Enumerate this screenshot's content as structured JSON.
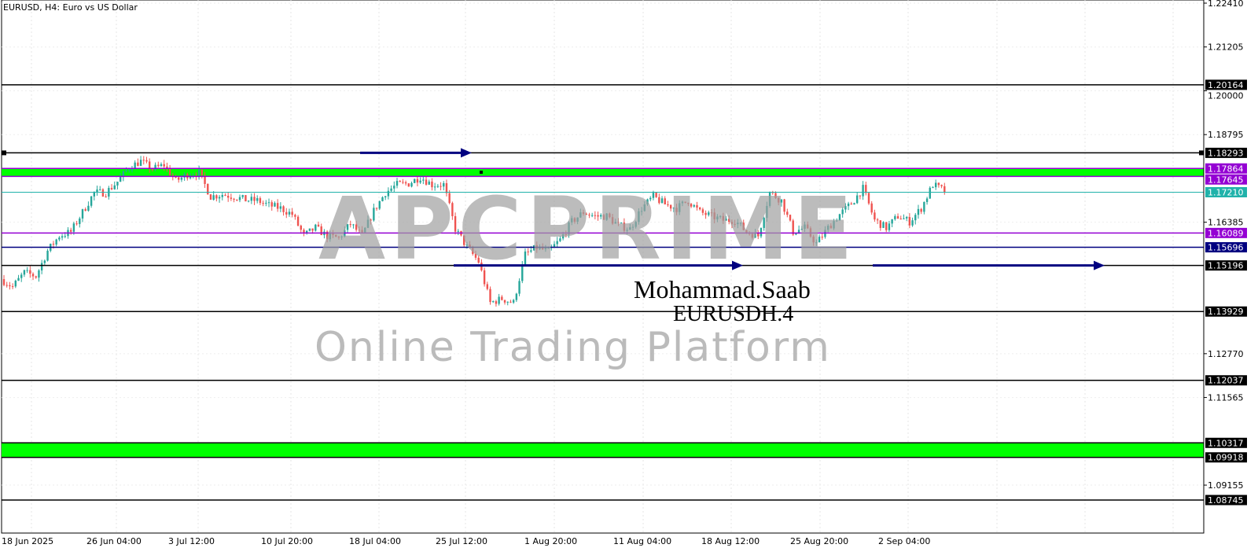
{
  "header": {
    "title": "EURUSD, H4:  Euro vs US Dollar"
  },
  "watermark": {
    "brand": "APCPRIME",
    "tagline": "Online Trading Platform"
  },
  "annotation": {
    "author": "Mohammad.Saab",
    "symbol": "EURUSDH.4"
  },
  "colors": {
    "bull": "#26a69a",
    "bear": "#ef5350",
    "zone": "#00ff00",
    "purple": "#9400d3",
    "navy": "#000080",
    "teal": "#20b2aa"
  },
  "chart_data": {
    "type": "candlestick",
    "symbol": "EURUSD",
    "timeframe": "H4",
    "ylim": [
      1.08745,
      1.2241
    ],
    "y_ticks": [
      "1.22410",
      "1.21205",
      "1.20000",
      "1.18795",
      "1.16385",
      "1.12770",
      "1.11565",
      "1.09155"
    ],
    "x_ticks": [
      "18 Jun 2025",
      "26 Jun 04:00",
      "3 Jul 12:00",
      "10 Jul 20:00",
      "18 Jul 04:00",
      "25 Jul 12:00",
      "1 Aug 20:00",
      "11 Aug 04:00",
      "18 Aug 12:00",
      "25 Aug 20:00",
      "2 Sep 04:00"
    ],
    "approx_closes": [
      1.1482,
      1.1461,
      1.15,
      1.149,
      1.156,
      1.1601,
      1.1612,
      1.1666,
      1.172,
      1.172,
      1.175,
      1.179,
      1.1806,
      1.1785,
      1.1796,
      1.1752,
      1.177,
      1.1774,
      1.1709,
      1.1715,
      1.1709,
      1.17,
      1.1698,
      1.1685,
      1.1677,
      1.166,
      1.1601,
      1.1623,
      1.16,
      1.1595,
      1.1634,
      1.1601,
      1.167,
      1.172,
      1.1742,
      1.1745,
      1.1763,
      1.1742,
      1.1742,
      1.162,
      1.157,
      1.153,
      1.1417,
      1.1428,
      1.1417,
      1.155,
      1.1569,
      1.1558,
      1.159,
      1.164,
      1.1666,
      1.1655,
      1.1655,
      1.163,
      1.162,
      1.1677,
      1.1709,
      1.1688,
      1.1677,
      1.1698,
      1.1666,
      1.1655,
      1.1644,
      1.1644,
      1.1612,
      1.1601,
      1.172,
      1.1698,
      1.1612,
      1.1623,
      1.158,
      1.1623,
      1.166,
      1.169,
      1.1731,
      1.1644,
      1.1623,
      1.1655,
      1.164,
      1.1677,
      1.1742,
      1.1725
    ],
    "levels": [
      {
        "price": "1.20164",
        "color": "#000000",
        "label_bg": "#000000"
      },
      {
        "price": "1.18293",
        "color": "#000000",
        "label_bg": "#000000"
      },
      {
        "price": "1.17864",
        "color": "#9400d3",
        "label_bg": "#9400d3"
      },
      {
        "price": "1.17645",
        "color": "#9400d3",
        "label_bg": "#9400d3"
      },
      {
        "price": "1.17210",
        "color": "#20b2aa",
        "label_bg": "#20b2aa"
      },
      {
        "price": "1.16089",
        "color": "#9400d3",
        "label_bg": "#9400d3"
      },
      {
        "price": "1.15696",
        "color": "#000080",
        "label_bg": "#000080"
      },
      {
        "price": "1.15196",
        "color": "#000000",
        "label_bg": "#000000"
      },
      {
        "price": "1.13929",
        "color": "#000000",
        "label_bg": "#000000"
      },
      {
        "price": "1.12037",
        "color": "#000000",
        "label_bg": "#000000"
      },
      {
        "price": "1.10317",
        "color": "#000000",
        "label_bg": "#000000"
      },
      {
        "price": "1.09918",
        "color": "#000000",
        "label_bg": "#000000"
      },
      {
        "price": "1.08745",
        "color": "#000000",
        "label_bg": "#000000"
      }
    ],
    "zones": [
      {
        "from": 1.17645,
        "to": 1.17864,
        "color": "#00ff00"
      },
      {
        "from": 1.09918,
        "to": 1.10317,
        "color": "#00ff00"
      }
    ],
    "arrows": [
      {
        "price": 1.18293,
        "from": "18 Jul 04:00",
        "color": "#000080"
      },
      {
        "price": 1.15196,
        "from": "25 Jul 12:00",
        "color": "#000080"
      },
      {
        "price": 1.15196,
        "from": "2 Sep 04:00",
        "color": "#000080"
      }
    ],
    "grid": true
  }
}
